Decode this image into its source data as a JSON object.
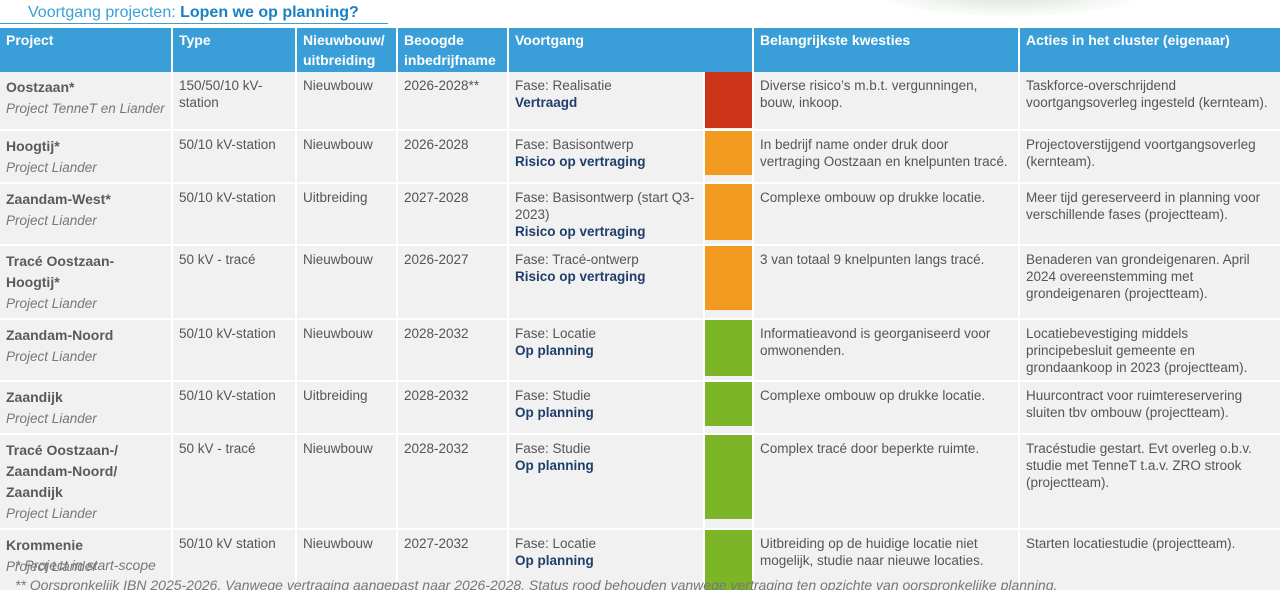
{
  "header": {
    "title_prefix": "Voortgang projecten: ",
    "title_emphasis": "Lopen we op planning?"
  },
  "columns": [
    "Project",
    "Type",
    "Nieuwbouw/ uitbreiding",
    "Beoogde inbedrijfname",
    "Voortgang",
    "Belangrijkste kwesties",
    "Acties in het cluster (eigenaar)"
  ],
  "status_colors": {
    "red": "#cc3318",
    "orange": "#f29a20",
    "green": "#7cb527"
  },
  "rows": [
    {
      "project": "Oostzaan*",
      "sub": "Project TenneT en Liander",
      "type": "150/50/10 kV-station",
      "nb": "Nieuwbouw",
      "beoogd": "2026-2028**",
      "fase": "Fase: Realisatie",
      "state": "Vertraagd",
      "status_color": "#cc3318",
      "kwesties": "Diverse risico’s m.b.t. vergunningen, bouw, inkoop.",
      "acties": "Taskforce-overschrijdend voortgangsoverleg ingesteld (kernteam)."
    },
    {
      "project": "Hoogtij*",
      "sub": "Project Liander",
      "type": "50/10 kV-station",
      "nb": "Nieuwbouw",
      "beoogd": "2026-2028",
      "fase": "Fase: Basisontwerp",
      "state": "Risico op vertraging",
      "status_color": "#f29a20",
      "kwesties": "In bedrijf name onder druk door vertraging Oostzaan en knelpunten tracé.",
      "acties": "Projectoverstijgend voortgangsoverleg (kernteam)."
    },
    {
      "project": "Zaandam-West*",
      "sub": "Project Liander",
      "type": "50/10 kV-station",
      "nb": "Uitbreiding",
      "beoogd": "2027-2028",
      "fase": "Fase: Basisontwerp (start Q3-2023)",
      "state": "Risico op vertraging",
      "status_color": "#f29a20",
      "kwesties": "Complexe ombouw op drukke locatie.",
      "acties": "Meer tijd gereserveerd in planning voor verschillende fases (projectteam)."
    },
    {
      "project": "Tracé Oostzaan-Hoogtij*",
      "sub": "Project Liander",
      "type": "50 kV - tracé",
      "nb": "Nieuwbouw",
      "beoogd": "2026-2027",
      "fase": "Fase: Tracé-ontwerp",
      "state": "Risico op vertraging",
      "status_color": "#f29a20",
      "kwesties": "3 van totaal 9 knelpunten langs tracé.",
      "acties": "Benaderen van grondeigenaren. April 2024 overeenstemming met grondeigenaren (projectteam)."
    },
    {
      "project": "Zaandam-Noord",
      "sub": "Project Liander",
      "type": "50/10 kV-station",
      "nb": "Nieuwbouw",
      "beoogd": "2028-2032",
      "fase": "Fase: Locatie",
      "state": "Op planning",
      "status_color": "#7cb527",
      "kwesties": "Informatieavond is georganiseerd voor omwonenden.",
      "acties": "Locatiebevestiging middels principebesluit gemeente en grondaankoop in 2023 (projectteam)."
    },
    {
      "project": "Zaandijk",
      "sub": "Project Liander",
      "type": "50/10 kV-station",
      "nb": "Uitbreiding",
      "beoogd": "2028-2032",
      "fase": "Fase: Studie",
      "state": "Op planning",
      "status_color": "#7cb527",
      "kwesties": "Complexe ombouw op drukke locatie.",
      "acties": "Huurcontract voor ruimtereservering sluiten tbv ombouw (projectteam)."
    },
    {
      "project": "Tracé Oostzaan-/ Zaandam-Noord/ Zaandijk",
      "sub": "Project Liander",
      "type": "50 kV - tracé",
      "nb": "Nieuwbouw",
      "beoogd": "2028-2032",
      "fase": "Fase: Studie",
      "state": "Op planning",
      "status_color": "#7cb527",
      "kwesties": "Complex tracé door beperkte ruimte.",
      "acties": "Tracéstudie gestart. Evt overleg o.b.v. studie met TenneT t.a.v. ZRO strook (projectteam)."
    },
    {
      "project": "Krommenie",
      "sub": "Project Liander",
      "type": "50/10 kV station",
      "nb": "Nieuwbouw",
      "beoogd": "2027-2032",
      "fase": "Fase: Locatie",
      "state": "Op planning",
      "status_color": "#7cb527",
      "kwesties": "Uitbreiding op de huidige locatie niet mogelijk, studie naar nieuwe locaties.",
      "acties": "Starten locatiestudie (projectteam)."
    }
  ],
  "footnotes": [
    "* Project in start-scope",
    "** Oorspronkelijk IBN 2025-2026. Vanwege vertraging aangepast naar 2026-2028. Status rood behouden vanwege vertraging ten opzichte van oorspronkelijke planning."
  ]
}
